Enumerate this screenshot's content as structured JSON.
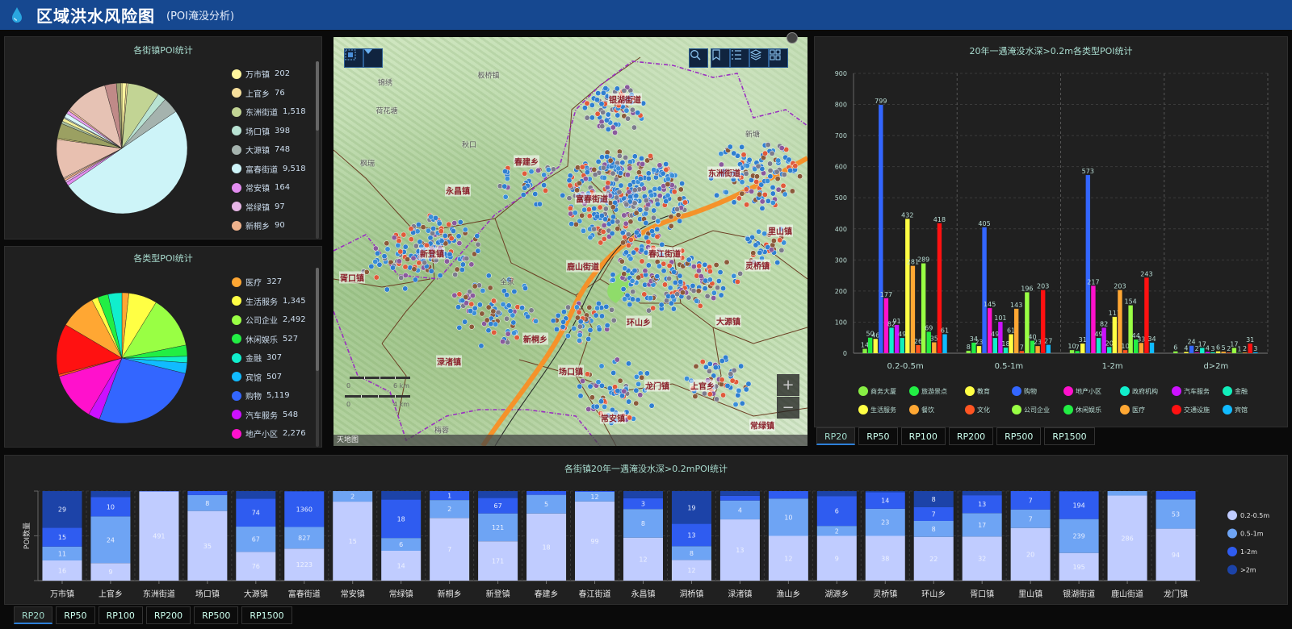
{
  "header": {
    "title": "区域洪水风险图",
    "subtitle": "(POI淹没分析)",
    "icon": "water-drop-icon",
    "bg_color": "#164890",
    "icon_color": "#2aa6e0"
  },
  "map": {
    "towns": [
      "银湖街道",
      "东洲街道",
      "春建乡",
      "永昌镇",
      "富春街道",
      "里山镇",
      "新登镇",
      "胥口镇",
      "鹿山街道",
      "春江街道",
      "灵桥镇",
      "环山乡",
      "大源镇",
      "新桐乡",
      "渌渚镇",
      "场口镇",
      "龙门镇",
      "上官乡",
      "常安镇",
      "常绿镇"
    ],
    "places": [
      "板桥镇",
      "锦绣",
      "荷花塘",
      "秋口",
      "枫瑞",
      "新塘",
      "全家",
      "梅蓉"
    ],
    "scale": {
      "a0": "0",
      "a": "6 km",
      "b0": "0",
      "b": "4 km"
    },
    "attribution": "天地图",
    "toolbar_left": [
      "select-region-icon",
      "dropdown-icon"
    ],
    "toolbar_right": [
      "search-icon",
      "bookmark-icon",
      "list-icon",
      "layers-icon",
      "grid-icon"
    ],
    "zoom_in": "+",
    "zoom_out": "−"
  },
  "depth_tabs": {
    "items": [
      "RP20",
      "RP50",
      "RP100",
      "RP200",
      "RP500",
      "RP1500"
    ],
    "active": "RP20"
  },
  "town_tabs": {
    "items": [
      "RP20",
      "RP50",
      "RP100",
      "RP200",
      "RP500",
      "RP1500"
    ],
    "active": "RP20"
  },
  "chart_data": [
    {
      "type": "pie",
      "title": "各街镇POI统计",
      "slices": [
        {
          "name": "万市镇",
          "value": 202,
          "label": "202",
          "color": "#fff59d"
        },
        {
          "name": "上官乡",
          "value": 76,
          "label": "76",
          "color": "#f6df9c"
        },
        {
          "name": "东洲街道",
          "value": 1518,
          "label": "1,518",
          "color": "#c2d494"
        },
        {
          "name": "场口镇",
          "value": 398,
          "label": "398",
          "color": "#b9e3d3"
        },
        {
          "name": "大源镇",
          "value": 748,
          "label": "748",
          "color": "#a5b3ae"
        },
        {
          "name": "富春街道",
          "value": 9518,
          "label": "9,518",
          "color": "#cdf4f8"
        },
        {
          "name": "常安镇",
          "value": 164,
          "label": "164",
          "color": "#e28cef"
        },
        {
          "name": "常绿镇",
          "value": 97,
          "label": "97",
          "color": "#e6b6e6"
        },
        {
          "name": "新桐乡",
          "value": 90,
          "label": "90",
          "color": "#efb28c"
        }
      ],
      "unlabeled_slices": [
        {
          "value": 60,
          "color": "#f3d0b8"
        },
        {
          "value": 1850,
          "color": "#e8c0b0"
        },
        {
          "value": 60,
          "color": "#f0e08a"
        },
        {
          "value": 700,
          "color": "#9ba062"
        },
        {
          "value": 120,
          "color": "#a8c0a0"
        },
        {
          "value": 150,
          "color": "#f3ef9a"
        },
        {
          "value": 60,
          "color": "#b0c8c8"
        },
        {
          "value": 200,
          "color": "#d8f6fa"
        },
        {
          "value": 150,
          "color": "#e8a0ee"
        },
        {
          "value": 90,
          "color": "#f0c0a0"
        },
        {
          "value": 2000,
          "color": "#e6c2b4"
        },
        {
          "value": 550,
          "color": "#c08a88"
        },
        {
          "value": 200,
          "color": "#9aa070"
        },
        {
          "value": 60,
          "color": "#f3ef9a"
        }
      ]
    },
    {
      "type": "pie",
      "title": "各类型POI统计",
      "slices": [
        {
          "name": "医疗",
          "value": 327,
          "label": "327",
          "color": "#ffa733"
        },
        {
          "name": "生活服务",
          "value": 1345,
          "label": "1,345",
          "color": "#ffff44"
        },
        {
          "name": "公司企业",
          "value": 2492,
          "label": "2,492",
          "color": "#99ff44"
        },
        {
          "name": "休闲娱乐",
          "value": 527,
          "label": "527",
          "color": "#22ee44"
        },
        {
          "name": "金融",
          "value": 307,
          "label": "307",
          "color": "#11eecc"
        },
        {
          "name": "宾馆",
          "value": 507,
          "label": "507",
          "color": "#11bbff"
        },
        {
          "name": "购物",
          "value": 5119,
          "label": "5,119",
          "color": "#3366ff"
        },
        {
          "name": "汽车服务",
          "value": 548,
          "label": "548",
          "color": "#cc11ff"
        },
        {
          "name": "地产小区",
          "value": 2276,
          "label": "2,276",
          "color": "#ff11cc"
        }
      ],
      "unlabeled_slices": [
        {
          "value": 100,
          "color": "#ff5522"
        },
        {
          "value": 2400,
          "color": "#ff1111"
        },
        {
          "value": 1700,
          "color": "#ffa733"
        },
        {
          "value": 300,
          "color": "#ffff44"
        },
        {
          "value": 500,
          "color": "#22ee44"
        },
        {
          "value": 650,
          "color": "#11eecc"
        }
      ]
    },
    {
      "type": "bar",
      "title": "20年一遇淹没水深>0.2m各类型POI统计",
      "categories": [
        "0.2-0.5m",
        "0.5-1m",
        "1-2m",
        "d>2m"
      ],
      "ylim": [
        0,
        900
      ],
      "yticks": [
        0,
        100,
        200,
        300,
        400,
        500,
        600,
        700,
        800,
        900
      ],
      "grid": true,
      "legend": "bottom",
      "series": [
        {
          "name": "商务大厦",
          "color": "#88ee44",
          "values": [
            14,
            8,
            10,
            6
          ]
        },
        {
          "name": "旅游景点",
          "color": "#22ee44",
          "values": [
            50,
            34,
            7,
            0
          ]
        },
        {
          "name": "教育",
          "color": "#ffff44",
          "values": [
            46,
            23,
            31,
            4
          ]
        },
        {
          "name": "购物",
          "color": "#3366ff",
          "values": [
            799,
            405,
            573,
            24
          ]
        },
        {
          "name": "地产小区",
          "color": "#ff11cc",
          "values": [
            177,
            145,
            217,
            2
          ]
        },
        {
          "name": "政府机构",
          "color": "#11eecc",
          "values": [
            82,
            49,
            49,
            17
          ]
        },
        {
          "name": "汽车服务",
          "color": "#cc11ff",
          "values": [
            91,
            101,
            82,
            4
          ]
        },
        {
          "name": "金融",
          "color": "#11eebb",
          "values": [
            49,
            18,
            20,
            3
          ]
        },
        {
          "name": "生活服务",
          "color": "#ffff44",
          "values": [
            432,
            61,
            117,
            6
          ]
        },
        {
          "name": "餐饮",
          "color": "#ffa733",
          "values": [
            281,
            143,
            203,
            5
          ]
        },
        {
          "name": "文化",
          "color": "#ff5522",
          "values": [
            26,
            7,
            10,
            2
          ]
        },
        {
          "name": "公司企业",
          "color": "#99ff44",
          "values": [
            289,
            196,
            154,
            17
          ]
        },
        {
          "name": "休闲娱乐",
          "color": "#22ee44",
          "values": [
            69,
            40,
            44,
            1
          ]
        },
        {
          "name": "医疗",
          "color": "#ffa733",
          "values": [
            35,
            23,
            33,
            2
          ]
        },
        {
          "name": "交通设施",
          "color": "#ff1111",
          "values": [
            418,
            203,
            243,
            31
          ]
        },
        {
          "name": "宾馆",
          "color": "#11bbff",
          "values": [
            61,
            27,
            34,
            3
          ]
        }
      ]
    },
    {
      "type": "bar",
      "stacked": "percent",
      "title": "各街镇20年一遇淹没水深>0.2mPOI统计",
      "ylabel": "POI数量",
      "legend": "right",
      "categories": [
        "万市镇",
        "上官乡",
        "东洲街道",
        "场口镇",
        "大源镇",
        "富春街道",
        "常安镇",
        "常绿镇",
        "新桐乡",
        "新登镇",
        "春建乡",
        "春江街道",
        "永昌镇",
        "洞桥镇",
        "渌渚镇",
        "渔山乡",
        "湖源乡",
        "灵桥镇",
        "环山乡",
        "胥口镇",
        "里山镇",
        "银湖街道",
        "鹿山街道",
        "龙门镇"
      ],
      "series": [
        {
          "name": "0.2-0.5m",
          "color": "#c0ccff",
          "values": [
            16,
            9,
            491,
            35,
            76,
            1223,
            15,
            14,
            7,
            171,
            18,
            99,
            12,
            12,
            13,
            12,
            9,
            38,
            22,
            32,
            20,
            195,
            286,
            94
          ]
        },
        {
          "name": "0.5-1m",
          "color": "#6ea4f4",
          "values": [
            11,
            24,
            0,
            8,
            67,
            827,
            2,
            6,
            2,
            121,
            5,
            12,
            8,
            8,
            4,
            10,
            2,
            23,
            8,
            17,
            7,
            239,
            15,
            53
          ]
        },
        {
          "name": "1-2m",
          "color": "#2f5cf0",
          "values": [
            15,
            10,
            2,
            2,
            74,
            1360,
            0,
            18,
            1,
            67,
            1,
            1,
            3,
            13,
            1,
            2,
            6,
            14,
            7,
            13,
            7,
            194,
            0,
            15
          ]
        },
        {
          "name": ">2m",
          "color": "#1c43a8",
          "values": [
            29,
            3,
            0,
            0,
            20,
            10,
            0,
            4,
            0,
            30,
            0,
            0,
            2,
            19,
            1,
            0,
            1,
            1,
            8,
            3,
            0,
            3,
            0,
            0
          ]
        }
      ]
    }
  ]
}
